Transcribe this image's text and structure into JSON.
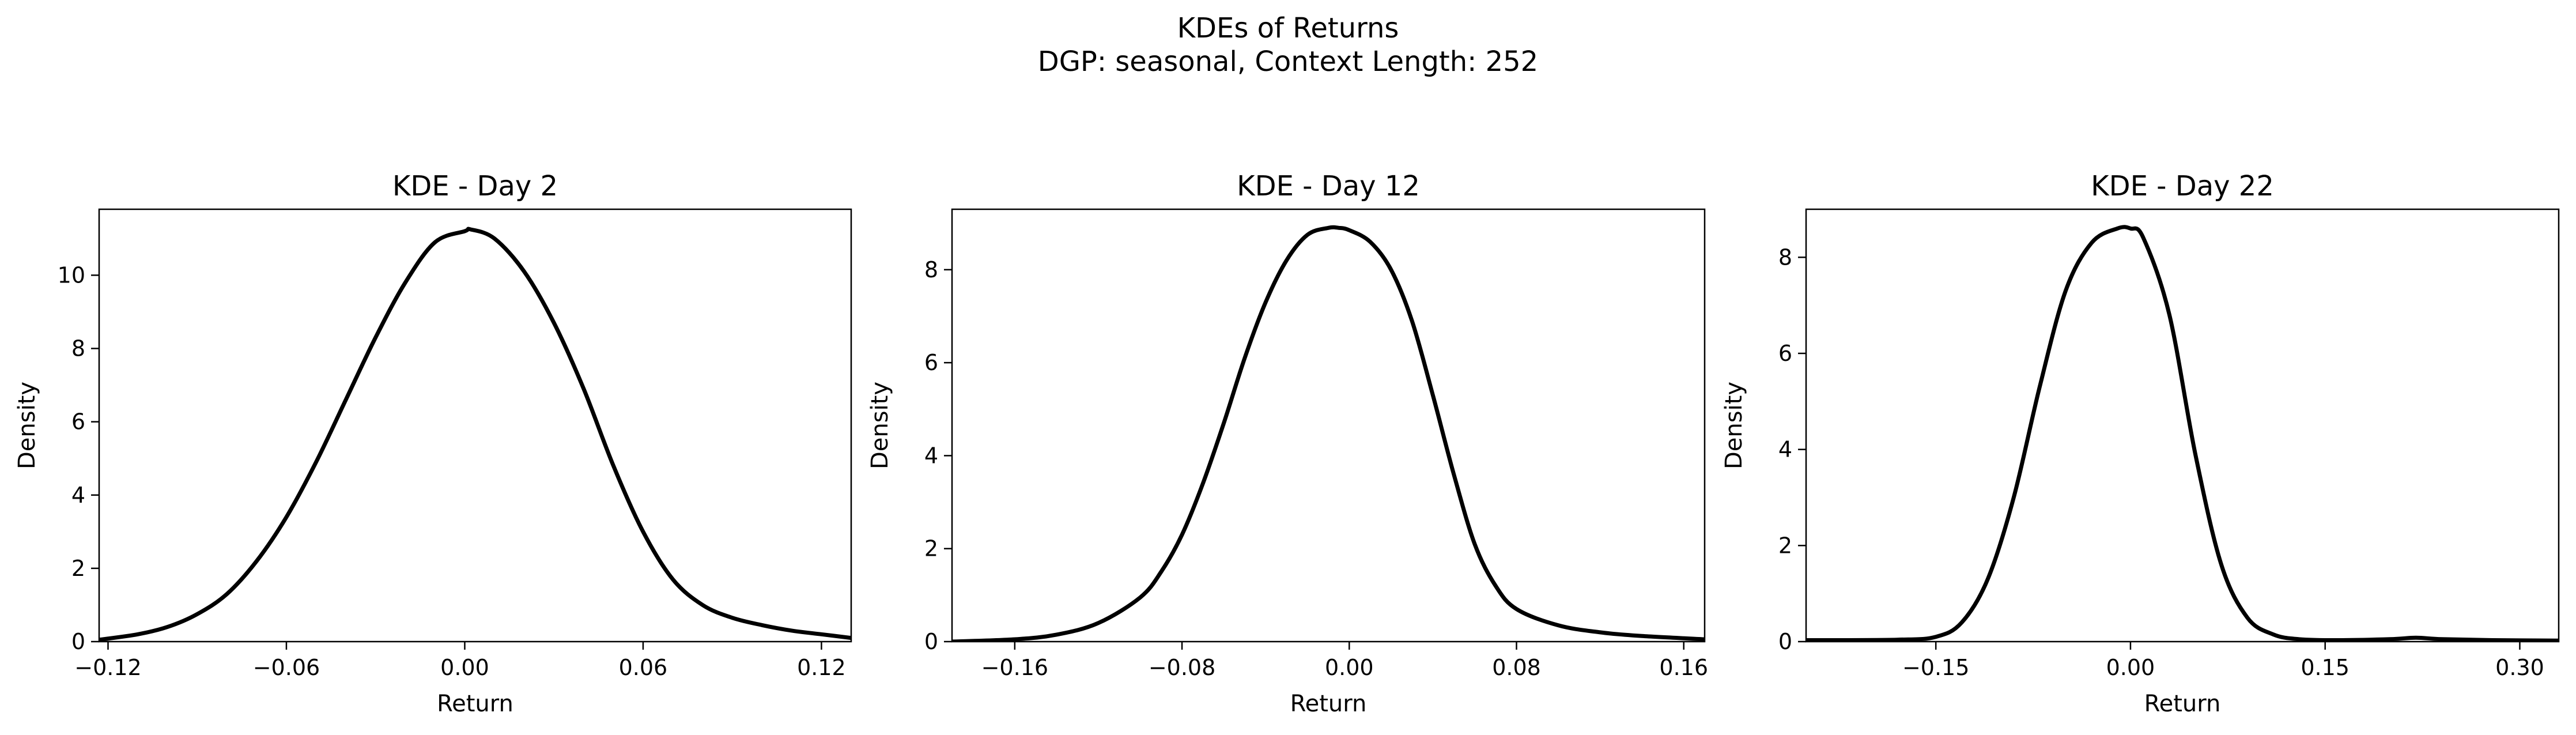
{
  "figure": {
    "title_line1": "KDEs of Returns",
    "title_line2": "DGP: seasonal, Context Length: 252"
  },
  "chart_data": [
    {
      "type": "line",
      "title": "KDE - Day 2",
      "xlabel": "Return",
      "ylabel": "Density",
      "xlim": [
        -0.123,
        0.13
      ],
      "ylim": [
        0,
        11.8
      ],
      "xticks": [
        -0.12,
        -0.06,
        0.0,
        0.06,
        0.12
      ],
      "xtick_labels": [
        "−0.12",
        "−0.06",
        "0.00",
        "0.06",
        "0.12"
      ],
      "yticks": [
        0,
        2,
        4,
        6,
        8,
        10
      ],
      "ytick_labels": [
        "0",
        "2",
        "4",
        "6",
        "8",
        "10"
      ],
      "grid": false,
      "line_color": "#000000",
      "x": [
        -0.123,
        -0.11,
        -0.1,
        -0.09,
        -0.08,
        -0.07,
        -0.06,
        -0.05,
        -0.04,
        -0.03,
        -0.02,
        -0.01,
        0.0,
        0.002,
        0.01,
        0.02,
        0.03,
        0.04,
        0.05,
        0.06,
        0.07,
        0.08,
        0.09,
        0.1,
        0.11,
        0.12,
        0.13
      ],
      "y": [
        0.05,
        0.2,
        0.4,
        0.75,
        1.3,
        2.2,
        3.4,
        4.9,
        6.6,
        8.3,
        9.8,
        10.9,
        11.2,
        11.25,
        11.0,
        10.1,
        8.7,
        6.9,
        4.8,
        3.0,
        1.7,
        1.0,
        0.65,
        0.45,
        0.3,
        0.2,
        0.1
      ]
    },
    {
      "type": "line",
      "title": "KDE - Day 12",
      "xlabel": "Return",
      "ylabel": "Density",
      "xlim": [
        -0.19,
        0.17
      ],
      "ylim": [
        0,
        9.3
      ],
      "xticks": [
        -0.16,
        -0.08,
        0.0,
        0.08,
        0.16
      ],
      "xtick_labels": [
        "−0.16",
        "−0.08",
        "0.00",
        "0.08",
        "0.16"
      ],
      "yticks": [
        0,
        2,
        4,
        6,
        8
      ],
      "ytick_labels": [
        "0",
        "2",
        "4",
        "6",
        "8"
      ],
      "grid": false,
      "line_color": "#000000",
      "x": [
        -0.19,
        -0.16,
        -0.14,
        -0.12,
        -0.1,
        -0.09,
        -0.08,
        -0.07,
        -0.06,
        -0.05,
        -0.04,
        -0.03,
        -0.02,
        -0.01,
        -0.005,
        0.0,
        0.01,
        0.02,
        0.03,
        0.04,
        0.05,
        0.06,
        0.07,
        0.08,
        0.1,
        0.12,
        0.14,
        0.17
      ],
      "y": [
        0.0,
        0.05,
        0.15,
        0.4,
        0.95,
        1.5,
        2.3,
        3.4,
        4.7,
        6.1,
        7.3,
        8.2,
        8.75,
        8.9,
        8.9,
        8.85,
        8.6,
        8.0,
        6.9,
        5.3,
        3.6,
        2.1,
        1.2,
        0.7,
        0.35,
        0.2,
        0.12,
        0.05
      ]
    },
    {
      "type": "line",
      "title": "KDE - Day 22",
      "xlabel": "Return",
      "ylabel": "Density",
      "xlim": [
        -0.25,
        0.33
      ],
      "ylim": [
        0,
        9.0
      ],
      "xticks": [
        -0.15,
        0.0,
        0.15,
        0.3
      ],
      "xtick_labels": [
        "−0.15",
        "0.00",
        "0.15",
        "0.30"
      ],
      "yticks": [
        0,
        2,
        4,
        6,
        8
      ],
      "ytick_labels": [
        "0",
        "2",
        "4",
        "6",
        "8"
      ],
      "grid": false,
      "line_color": "#000000",
      "x": [
        -0.25,
        -0.18,
        -0.15,
        -0.13,
        -0.11,
        -0.09,
        -0.07,
        -0.05,
        -0.03,
        -0.01,
        0.0,
        0.01,
        0.03,
        0.05,
        0.07,
        0.09,
        0.11,
        0.13,
        0.16,
        0.2,
        0.22,
        0.24,
        0.28,
        0.33
      ],
      "y": [
        0.03,
        0.04,
        0.1,
        0.4,
        1.3,
        3.0,
        5.3,
        7.3,
        8.3,
        8.6,
        8.6,
        8.4,
        6.8,
        3.9,
        1.6,
        0.5,
        0.15,
        0.05,
        0.03,
        0.05,
        0.08,
        0.05,
        0.03,
        0.02
      ]
    }
  ]
}
